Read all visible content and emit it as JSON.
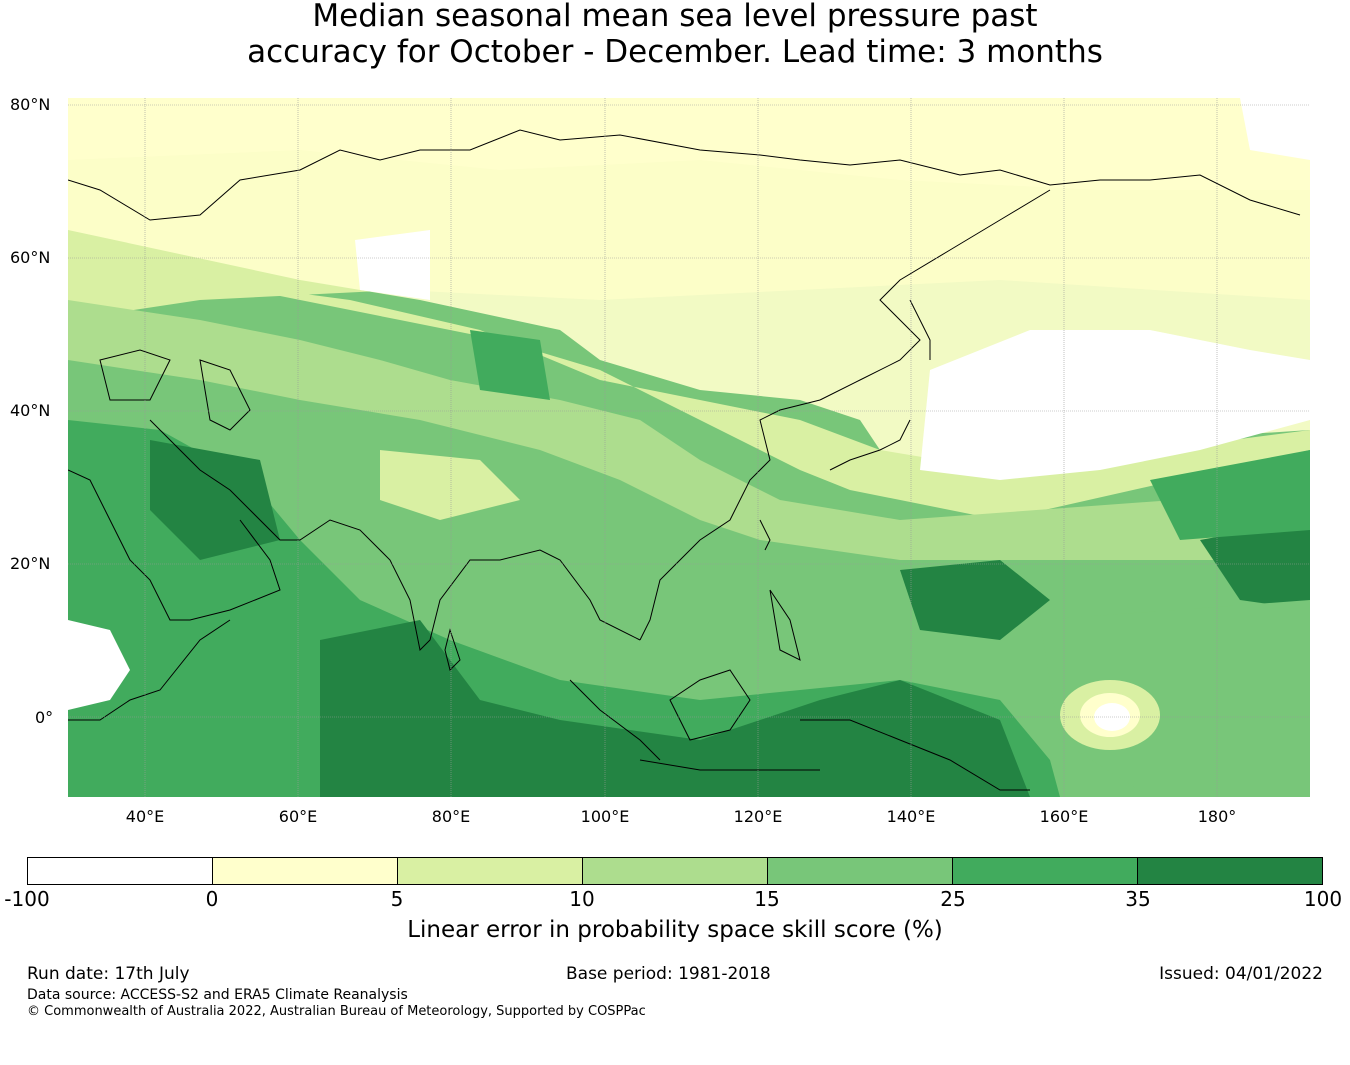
{
  "title": {
    "line1": "Median seasonal mean sea level pressure past",
    "line2": "accuracy for October - December. Lead time: 3 months"
  },
  "map": {
    "lat_labels": [
      "80°N",
      "60°N",
      "40°N",
      "20°N",
      "0°"
    ],
    "lon_labels": [
      "40°E",
      "60°E",
      "80°E",
      "100°E",
      "120°E",
      "140°E",
      "160°E",
      "180°"
    ],
    "extent": {
      "lon_min": 30,
      "lon_max": 192,
      "lat_min": -10,
      "lat_max": 81
    }
  },
  "colorbar": {
    "ticks": [
      "-100",
      "0",
      "5",
      "10",
      "15",
      "25",
      "35",
      "100"
    ],
    "colors": [
      "#ffffff",
      "#ffffcc",
      "#d9f0a3",
      "#addd8e",
      "#78c679",
      "#41ab5d",
      "#238443"
    ],
    "label": "Linear error in probability space skill score (%)"
  },
  "footer": {
    "run_date": "Run date: 17th July",
    "base_period": "Base period: 1981-2018",
    "issued": "Issued: 04/01/2022",
    "data_source": "Data source: ACCESS-S2 and ERA5 Climate Reanalysis",
    "copyright": "© Commonwealth of Australia 2022, Australian Bureau of Meteorology, Supported by COSPPac"
  }
}
